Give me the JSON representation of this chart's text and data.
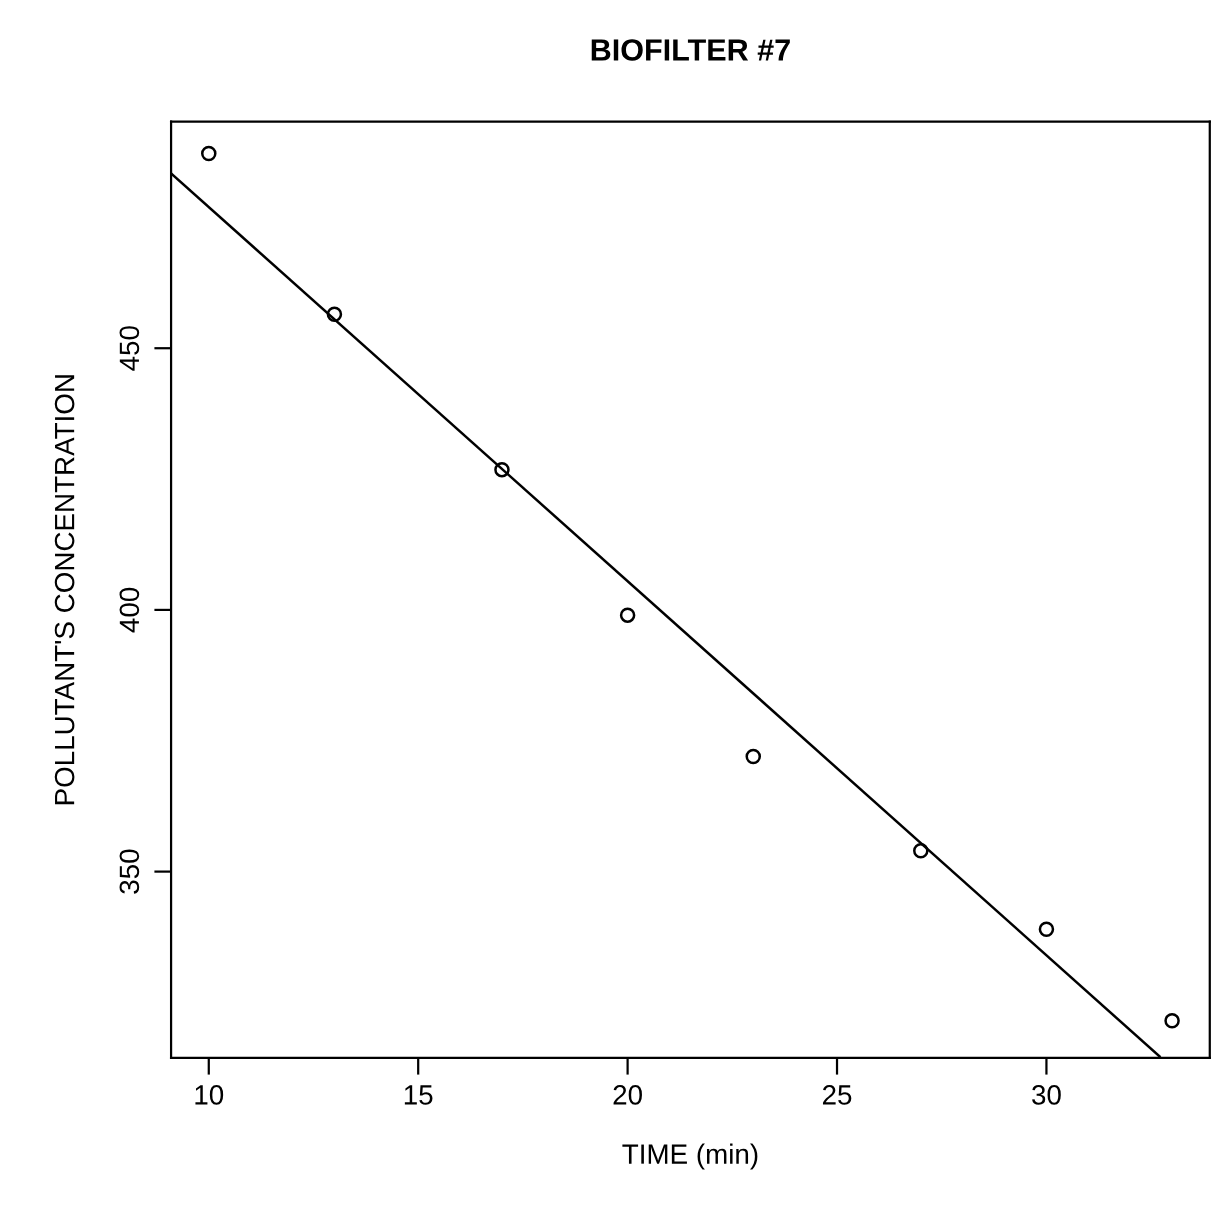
{
  "chart_data": {
    "type": "scatter",
    "title": "BIOFILTER #7",
    "xlabel": "TIME (min)",
    "ylabel": "POLLUTANT'S CONCENTRATION",
    "x": [
      10,
      13,
      17,
      20,
      23,
      27,
      30,
      33
    ],
    "series": [
      {
        "color": "#000000",
        "marker": "circle",
        "values": [
          487.2,
          456.5,
          426.8,
          399,
          372,
          354,
          339,
          321.5
        ]
      },
      {
        "type": "line",
        "color": "#000000",
        "x": [
          9.1,
          32.7
        ],
        "values": [
          483.4,
          314.7
        ]
      }
    ],
    "xlim": [
      9.1,
      33.9
    ],
    "ylim": [
      314.4,
      493.3
    ],
    "xticks": [
      10,
      15,
      20,
      25,
      30
    ],
    "yticks": [
      350,
      400,
      450
    ],
    "grid": false,
    "legend": false
  }
}
